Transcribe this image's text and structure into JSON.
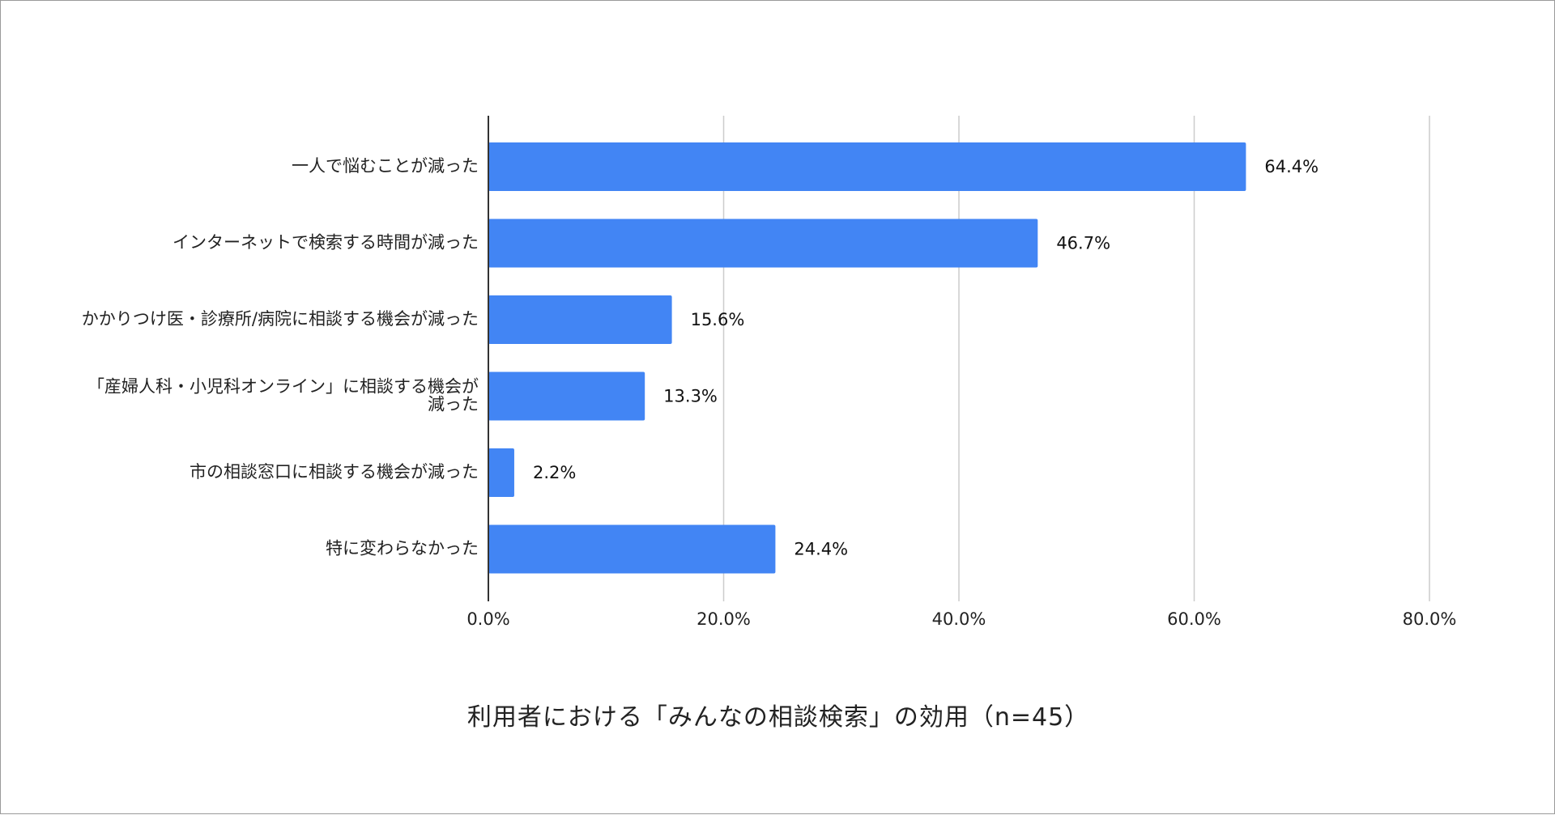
{
  "chart_data": {
    "type": "bar",
    "orientation": "horizontal",
    "categories": [
      "一人で悩むことが減った",
      "インターネットで検索する時間が減った",
      "かかりつけ医・診療所/病院に相談する機会が減った",
      "「産婦人科・小児科オンライン」に相談する機会が減った",
      "市の相談窓口に相談する機会が減った",
      "特に変わらなかった"
    ],
    "category_lines": [
      [
        "一人で悩むことが減った"
      ],
      [
        "インターネットで検索する時間が減った"
      ],
      [
        "かかりつけ医・診療所/病院に相談する機会が減った"
      ],
      [
        "「産婦人科・小児科オンライン」に相談する機会が",
        "減った"
      ],
      [
        "市の相談窓口に相談する機会が減った"
      ],
      [
        "特に変わらなかった"
      ]
    ],
    "values": [
      64.4,
      46.7,
      15.6,
      13.3,
      2.2,
      24.4
    ],
    "data_labels": [
      "64.4%",
      "46.7%",
      "15.6%",
      "13.3%",
      "2.2%",
      "24.4%"
    ],
    "x_ticks": [
      0,
      20,
      40,
      60,
      80
    ],
    "x_tick_labels": [
      "0.0%",
      "20.0%",
      "40.0%",
      "60.0%",
      "80.0%"
    ],
    "xlim": [
      0,
      80
    ],
    "grid": true,
    "legend": "none",
    "bar_color": "#4285f4",
    "caption": "利用者における「みんなの相談検索」の効用（n=45）"
  }
}
